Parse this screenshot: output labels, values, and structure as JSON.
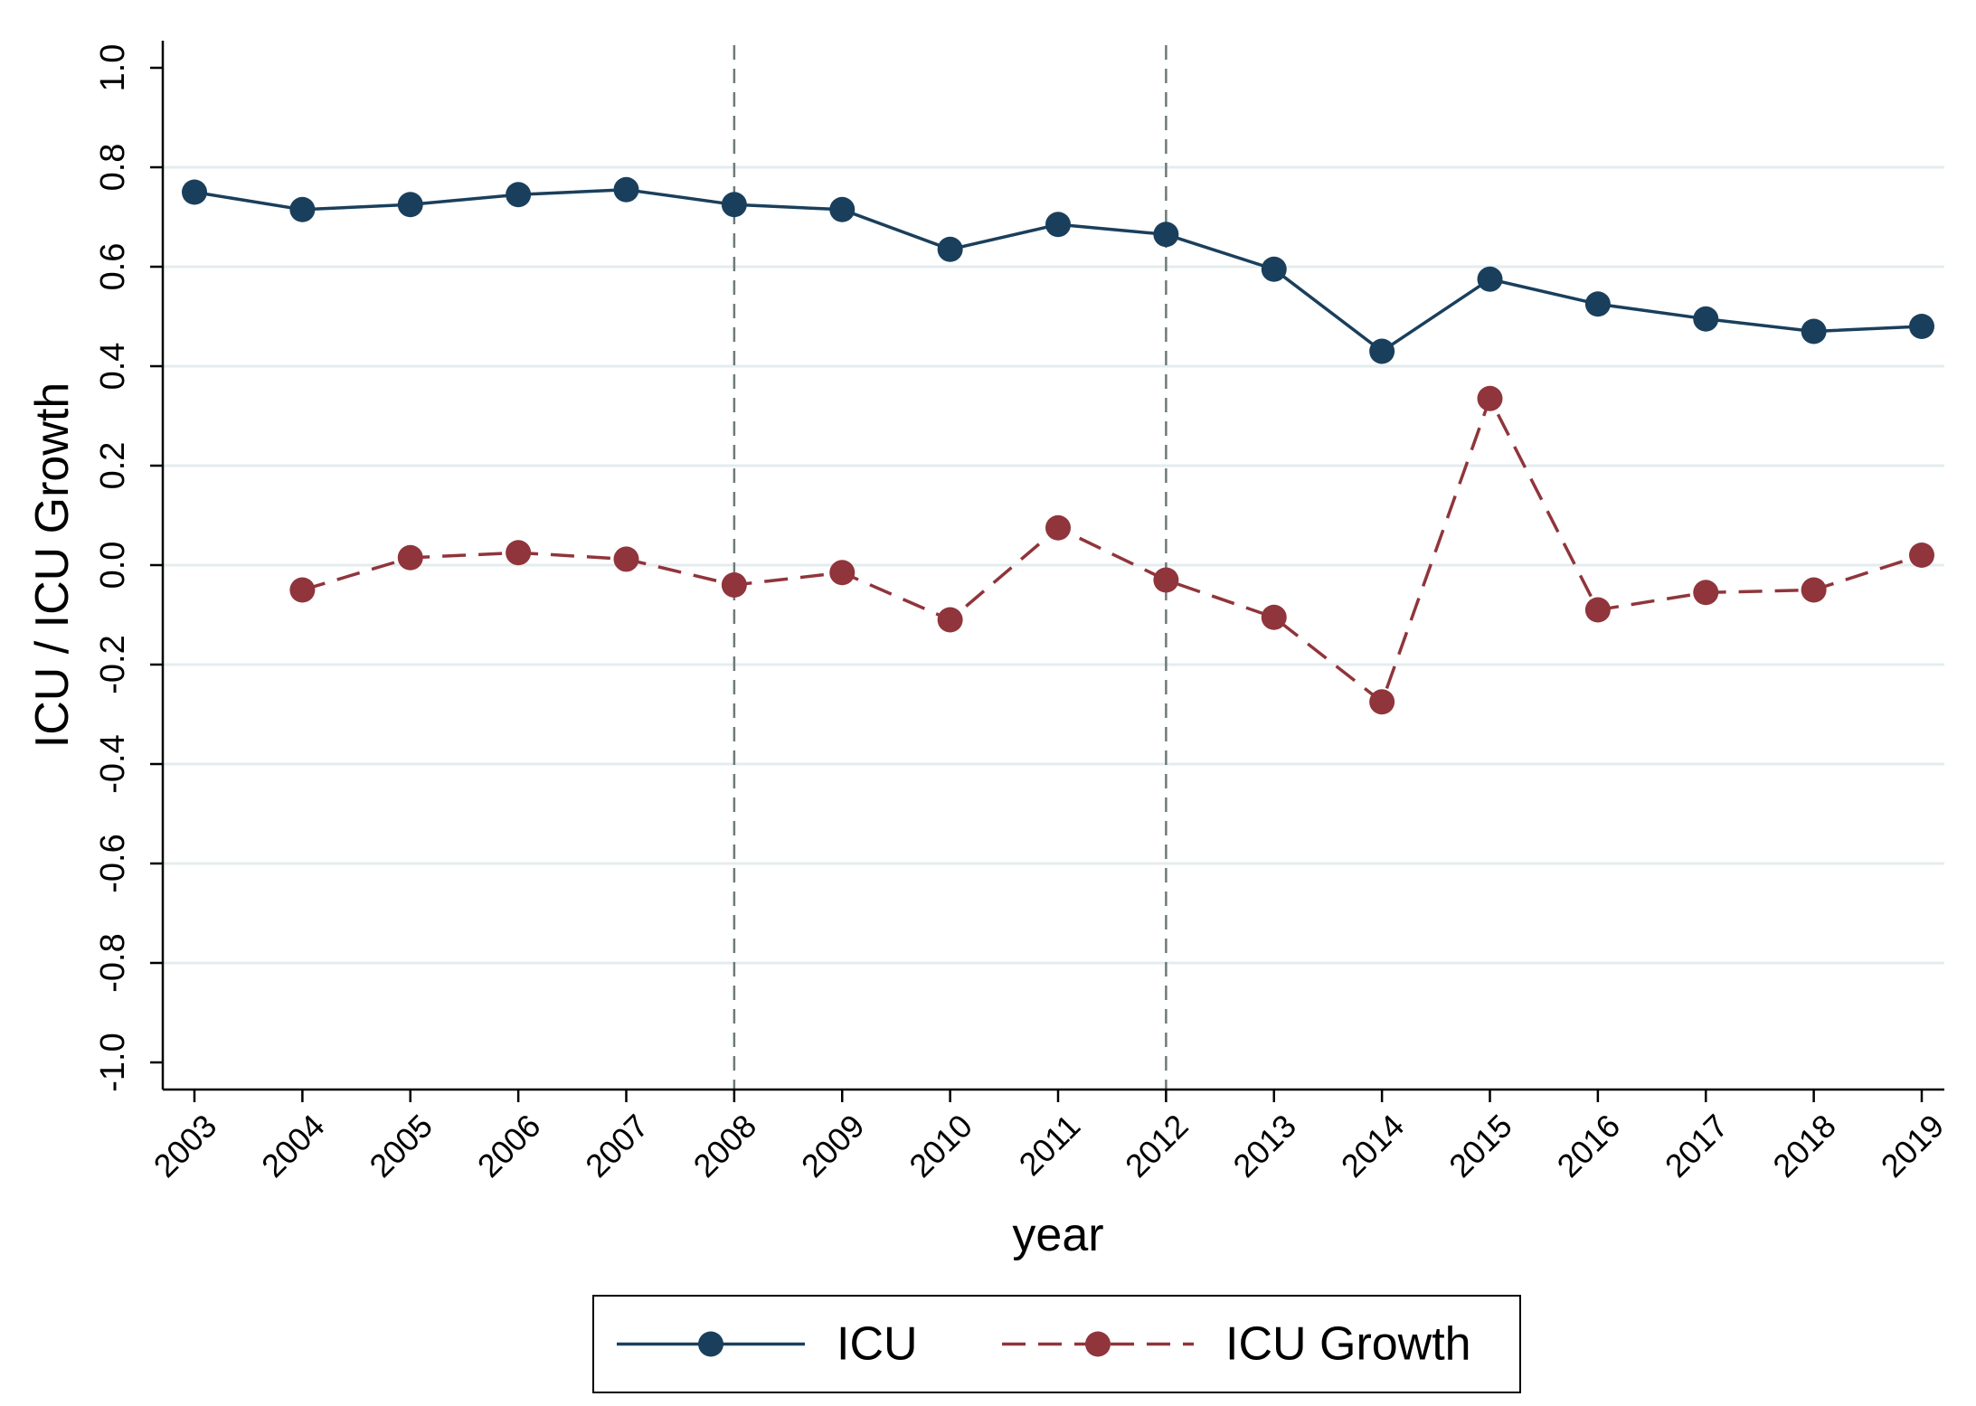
{
  "chart_data": {
    "type": "line",
    "xlabel": "year",
    "ylabel": "ICU / ICU Growth",
    "ylim": [
      -1.0,
      1.0
    ],
    "yticks": [
      -1.0,
      -0.8,
      -0.6,
      -0.4,
      -0.2,
      0.0,
      0.2,
      0.4,
      0.6,
      0.8,
      1.0
    ],
    "ytick_labels": [
      "-1.0",
      "-0.8",
      "-0.6",
      "-0.4",
      "-0.2",
      "0.0",
      "0.2",
      "0.4",
      "0.6",
      "0.8",
      "1.0"
    ],
    "categories": [
      "2003",
      "2004",
      "2005",
      "2006",
      "2007",
      "2008",
      "2009",
      "2010",
      "2011",
      "2012",
      "2013",
      "2014",
      "2015",
      "2016",
      "2017",
      "2018",
      "2019"
    ],
    "reference_lines_x": [
      "2008",
      "2012"
    ],
    "grid": true,
    "legend_position": "bottom",
    "series": [
      {
        "name": "ICU",
        "color": "#1a3f5c",
        "line_style": "solid",
        "values": [
          0.75,
          0.715,
          0.725,
          0.745,
          0.755,
          0.725,
          0.715,
          0.635,
          0.685,
          0.665,
          0.595,
          0.43,
          0.575,
          0.525,
          0.495,
          0.47,
          0.48
        ]
      },
      {
        "name": "ICU Growth",
        "color": "#90353b",
        "line_style": "dashed",
        "values": [
          null,
          -0.05,
          0.015,
          0.025,
          0.012,
          -0.04,
          -0.015,
          -0.11,
          0.075,
          -0.03,
          -0.105,
          -0.275,
          0.335,
          -0.09,
          -0.055,
          -0.05,
          0.02
        ]
      }
    ]
  }
}
